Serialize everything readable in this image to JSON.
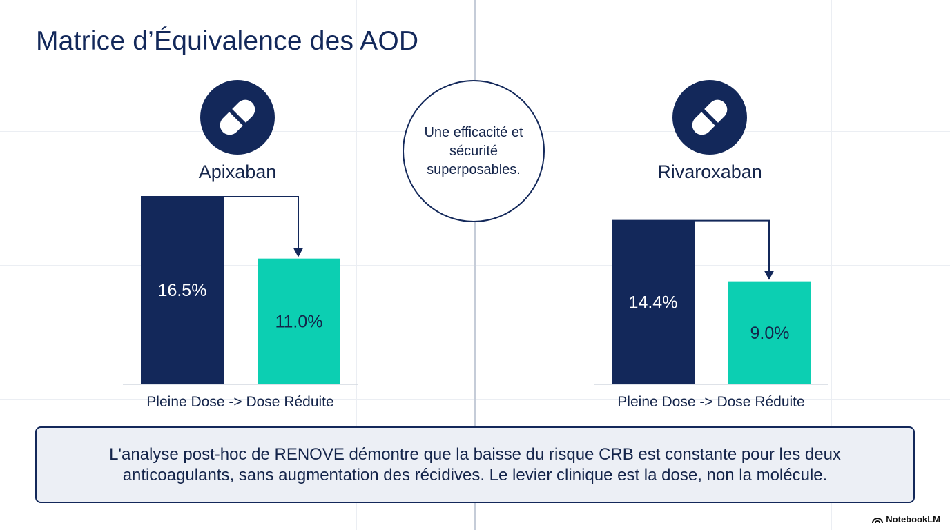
{
  "title": "Matrice d’Équivalence des AOD",
  "center_note": "Une efficacité et sécurité superposables.",
  "summary": "L'analyse post-hoc de RENOVE démontre que la baisse du risque CRB est constante pour les deux anticoagulants, sans augmentation des récidives. Le levier clinique est la dose, non la molécule.",
  "brand": "NotebookLM",
  "colors": {
    "full_dose": "#13285a",
    "reduced_dose": "#0ccfb2",
    "accent": "#13285a"
  },
  "icons": {
    "drug": "pill-icon",
    "brand": "notebooklm-icon"
  },
  "chart_data": [
    {
      "type": "bar",
      "title": "Apixaban",
      "categories": [
        "Pleine Dose",
        "Dose Réduite"
      ],
      "values": [
        16.5,
        11.0
      ],
      "value_labels": [
        "16.5%",
        "11.0%"
      ],
      "xlabel": "Pleine Dose -> Dose Réduite",
      "ylabel": "",
      "ylim": [
        0,
        16.5
      ],
      "annotation": "arrow from full dose to reduced dose"
    },
    {
      "type": "bar",
      "title": "Rivaroxaban",
      "categories": [
        "Pleine Dose",
        "Dose Réduite"
      ],
      "values": [
        14.4,
        9.0
      ],
      "value_labels": [
        "14.4%",
        "9.0%"
      ],
      "xlabel": "Pleine Dose -> Dose Réduite",
      "ylabel": "",
      "ylim": [
        0,
        16.5
      ],
      "annotation": "arrow from full dose to reduced dose"
    }
  ]
}
